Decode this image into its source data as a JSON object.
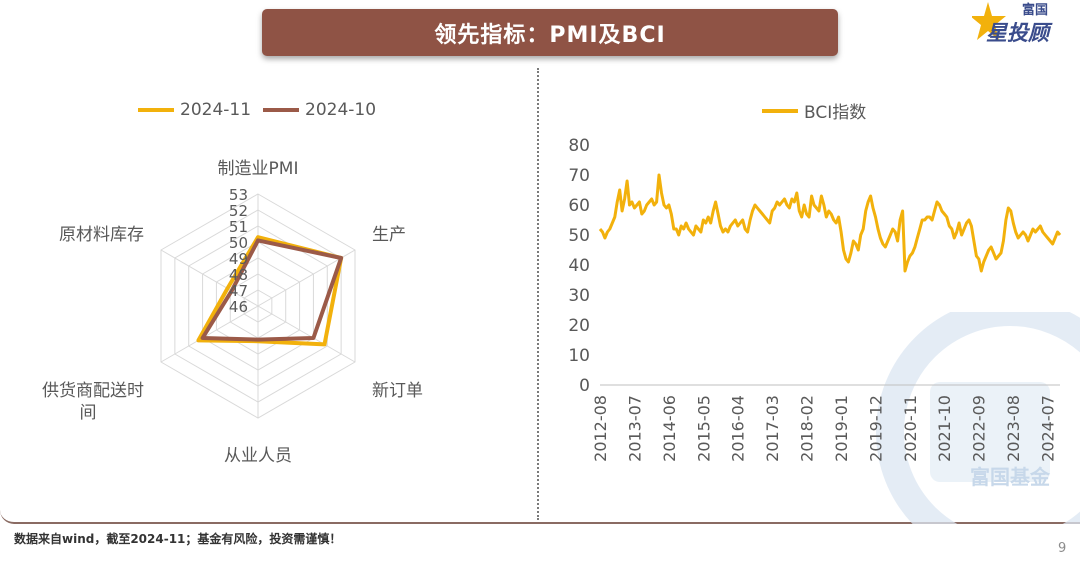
{
  "header": {
    "title": "领先指标：PMI及BCI"
  },
  "logo": {
    "line1": "富国",
    "line2": "星投顾",
    "icon": "star-icon"
  },
  "watermark": {
    "text": "富国基金",
    "icon": "fullgoal-watermark-icon"
  },
  "footer": {
    "note": "数据来自wind，截至2024-11；基金有风险，投资需谨慎！",
    "page": "9"
  },
  "colors": {
    "gold": "#F2B10C",
    "brown": "#9B5A48",
    "banner": "#8F5345"
  },
  "chart_data": [
    {
      "type": "radar",
      "legend": [
        "2024-11",
        "2024-10"
      ],
      "axes": [
        "制造业PMI",
        "生产",
        "新订单",
        "从业人员",
        "供货商配送时间",
        "原材料库存"
      ],
      "axis_labels": {
        "制造业PMI": "制造业PMI",
        "生产": "生产",
        "新订单": "新订单",
        "从业人员": "从业人员",
        "供货商配送时间_1": "供货商配送时",
        "供货商配送时间_2": "间",
        "原材料库存": "原材料库存"
      },
      "ticks": [
        "46",
        "47",
        "48",
        "49",
        "50",
        "51",
        "52",
        "53"
      ],
      "range": [
        46,
        53
      ],
      "series": [
        {
          "name": "2024-11",
          "values": [
            50.3,
            52.0,
            50.8,
            48.2,
            50.3,
            48.2
          ]
        },
        {
          "name": "2024-10",
          "values": [
            50.1,
            52.0,
            50.0,
            48.1,
            50.0,
            47.9
          ]
        }
      ]
    },
    {
      "type": "line",
      "legend": [
        "BCI指数"
      ],
      "ylim": [
        0,
        80
      ],
      "yticks": [
        "0",
        "10",
        "20",
        "30",
        "40",
        "50",
        "60",
        "70",
        "80"
      ],
      "xticks": [
        "2012-08",
        "2013-07",
        "2014-06",
        "2015-05",
        "2016-04",
        "2017-03",
        "2018-02",
        "2019-01",
        "2019-12",
        "2020-11",
        "2021-10",
        "2022-09",
        "2023-08",
        "2024-07"
      ],
      "x_start": "2012-08",
      "x_end": "2024-11",
      "series": [
        {
          "name": "BCI指数",
          "values": [
            52.0,
            51.0,
            49.0,
            51.0,
            52.0,
            54.0,
            56.0,
            61.0,
            65.0,
            58.0,
            62.0,
            68.0,
            60.0,
            61.0,
            59.0,
            60.0,
            61.0,
            57.0,
            58.0,
            60.0,
            61.0,
            62.0,
            60.0,
            61.0,
            70.0,
            64.0,
            60.0,
            59.0,
            60.0,
            57.0,
            52.0,
            52.0,
            50.0,
            53.0,
            52.0,
            54.0,
            52.0,
            51.0,
            50.0,
            53.0,
            52.0,
            51.0,
            55.0,
            54.0,
            56.0,
            54.0,
            58.0,
            61.0,
            57.0,
            53.0,
            51.0,
            52.0,
            51.0,
            53.0,
            54.0,
            55.0,
            53.0,
            54.0,
            55.0,
            52.0,
            51.0,
            55.0,
            58.0,
            60.0,
            59.0,
            58.0,
            57.0,
            56.0,
            55.0,
            54.0,
            58.0,
            59.0,
            61.0,
            60.0,
            61.0,
            62.0,
            60.0,
            59.0,
            62.0,
            61.0,
            64.0,
            58.0,
            56.0,
            60.0,
            57.0,
            56.0,
            63.0,
            60.0,
            59.0,
            58.0,
            63.0,
            60.0,
            56.0,
            58.0,
            57.0,
            55.0,
            54.0,
            56.0,
            51.0,
            45.0,
            42.0,
            41.0,
            44.0,
            48.0,
            47.0,
            45.0,
            50.0,
            52.0,
            58.0,
            61.0,
            63.0,
            59.0,
            56.0,
            52.0,
            49.0,
            47.0,
            46.0,
            48.0,
            50.0,
            52.0,
            51.0,
            48.0,
            55.0,
            58.0,
            38.0,
            41.0,
            43.0,
            44.0,
            46.0,
            49.0,
            52.0,
            55.0,
            55.0,
            56.0,
            56.0,
            55.0,
            58.0,
            61.0,
            60.0,
            58.0,
            57.0,
            56.0,
            53.0,
            52.0,
            49.0,
            51.0,
            54.0,
            50.0,
            52.0,
            54.0,
            55.0,
            53.0,
            48.0,
            43.0,
            42.0,
            38.0,
            41.0,
            43.0,
            45.0,
            46.0,
            44.0,
            42.0,
            43.0,
            44.0,
            48.0,
            55.0,
            59.0,
            58.0,
            54.0,
            51.0,
            49.0,
            50.0,
            51.0,
            50.0,
            48.0,
            50.0,
            52.0,
            51.0,
            52.0,
            53.0,
            51.0,
            50.0,
            49.0,
            48.0,
            47.0,
            49.0,
            51.0,
            50.0
          ]
        }
      ]
    }
  ]
}
